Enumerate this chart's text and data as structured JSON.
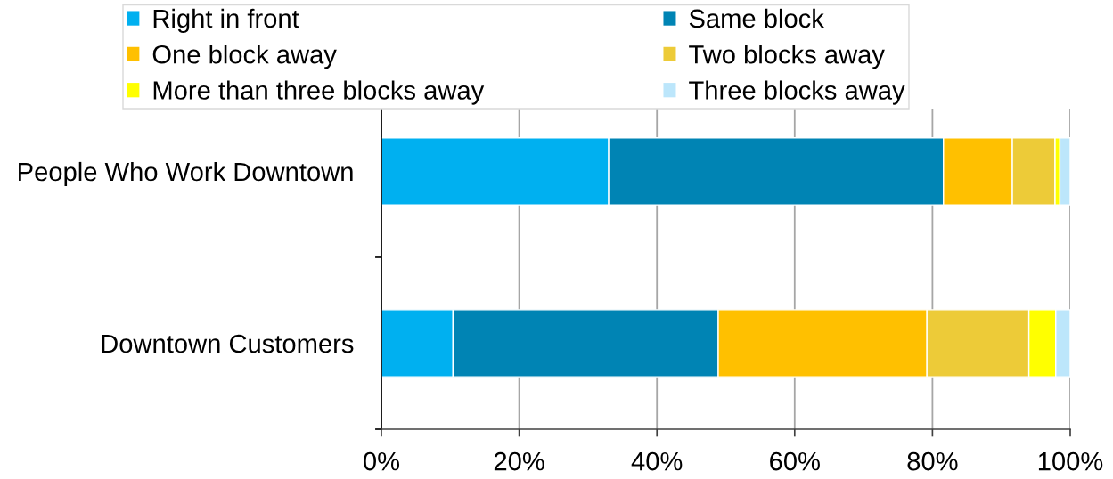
{
  "chart_data": {
    "type": "bar",
    "orientation": "horizontal",
    "stacked": true,
    "categories": [
      "People Who Work Downtown",
      "Downtown Customers"
    ],
    "series": [
      {
        "name": "Right in front",
        "color": "#00b0f0",
        "values": [
          33.0,
          10.4
        ]
      },
      {
        "name": "Same block",
        "color": "#0084b4",
        "values": [
          48.6,
          38.5
        ]
      },
      {
        "name": "One block away",
        "color": "#ffc000",
        "values": [
          10.0,
          30.3
        ]
      },
      {
        "name": "Two blocks away",
        "color": "#edcb38",
        "values": [
          6.2,
          14.8
        ]
      },
      {
        "name": "More than three blocks away",
        "color": "#ffff00",
        "values": [
          0.7,
          3.9
        ]
      },
      {
        "name": "Three blocks away",
        "color": "#bce6fb",
        "values": [
          1.5,
          2.1
        ]
      }
    ],
    "xlim": [
      0,
      100
    ],
    "xticks": [
      {
        "value": 0,
        "label": "0%"
      },
      {
        "value": 20,
        "label": "20%"
      },
      {
        "value": 40,
        "label": "40%"
      },
      {
        "value": 60,
        "label": "60%"
      },
      {
        "value": 80,
        "label": "80%"
      },
      {
        "value": 100,
        "label": "100%"
      }
    ],
    "grid": "x",
    "legend": "top"
  }
}
